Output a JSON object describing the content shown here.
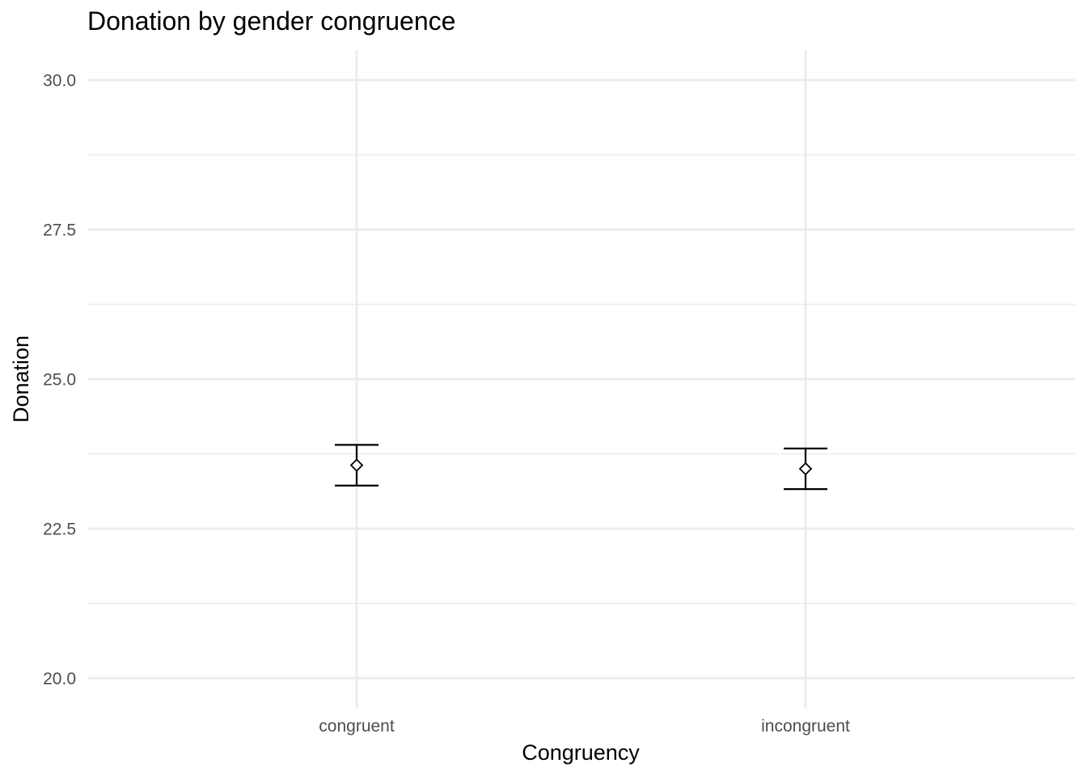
{
  "chart_data": {
    "type": "errorbar",
    "title": "Donation by gender congruence",
    "xlabel": "Congruency",
    "ylabel": "Donation",
    "categories": [
      "congruent",
      "incongruent"
    ],
    "series": [
      {
        "points": [
          {
            "category": "congruent",
            "mean": 23.56,
            "lower": 23.22,
            "upper": 23.9
          },
          {
            "category": "incongruent",
            "mean": 23.5,
            "lower": 23.16,
            "upper": 23.84
          }
        ]
      }
    ],
    "ylim": [
      19.5,
      30.5
    ],
    "yticks": [
      20.0,
      22.5,
      25.0,
      27.5,
      30.0
    ],
    "ytick_labels": [
      "20.0",
      "22.5",
      "25.0",
      "27.5",
      "30.0"
    ],
    "grid": true,
    "marker": "open-diamond",
    "colors": {
      "mark": "#000000",
      "grid": "#ebebeb",
      "tick_text": "#4d4d4d",
      "label_text": "#000000"
    }
  }
}
